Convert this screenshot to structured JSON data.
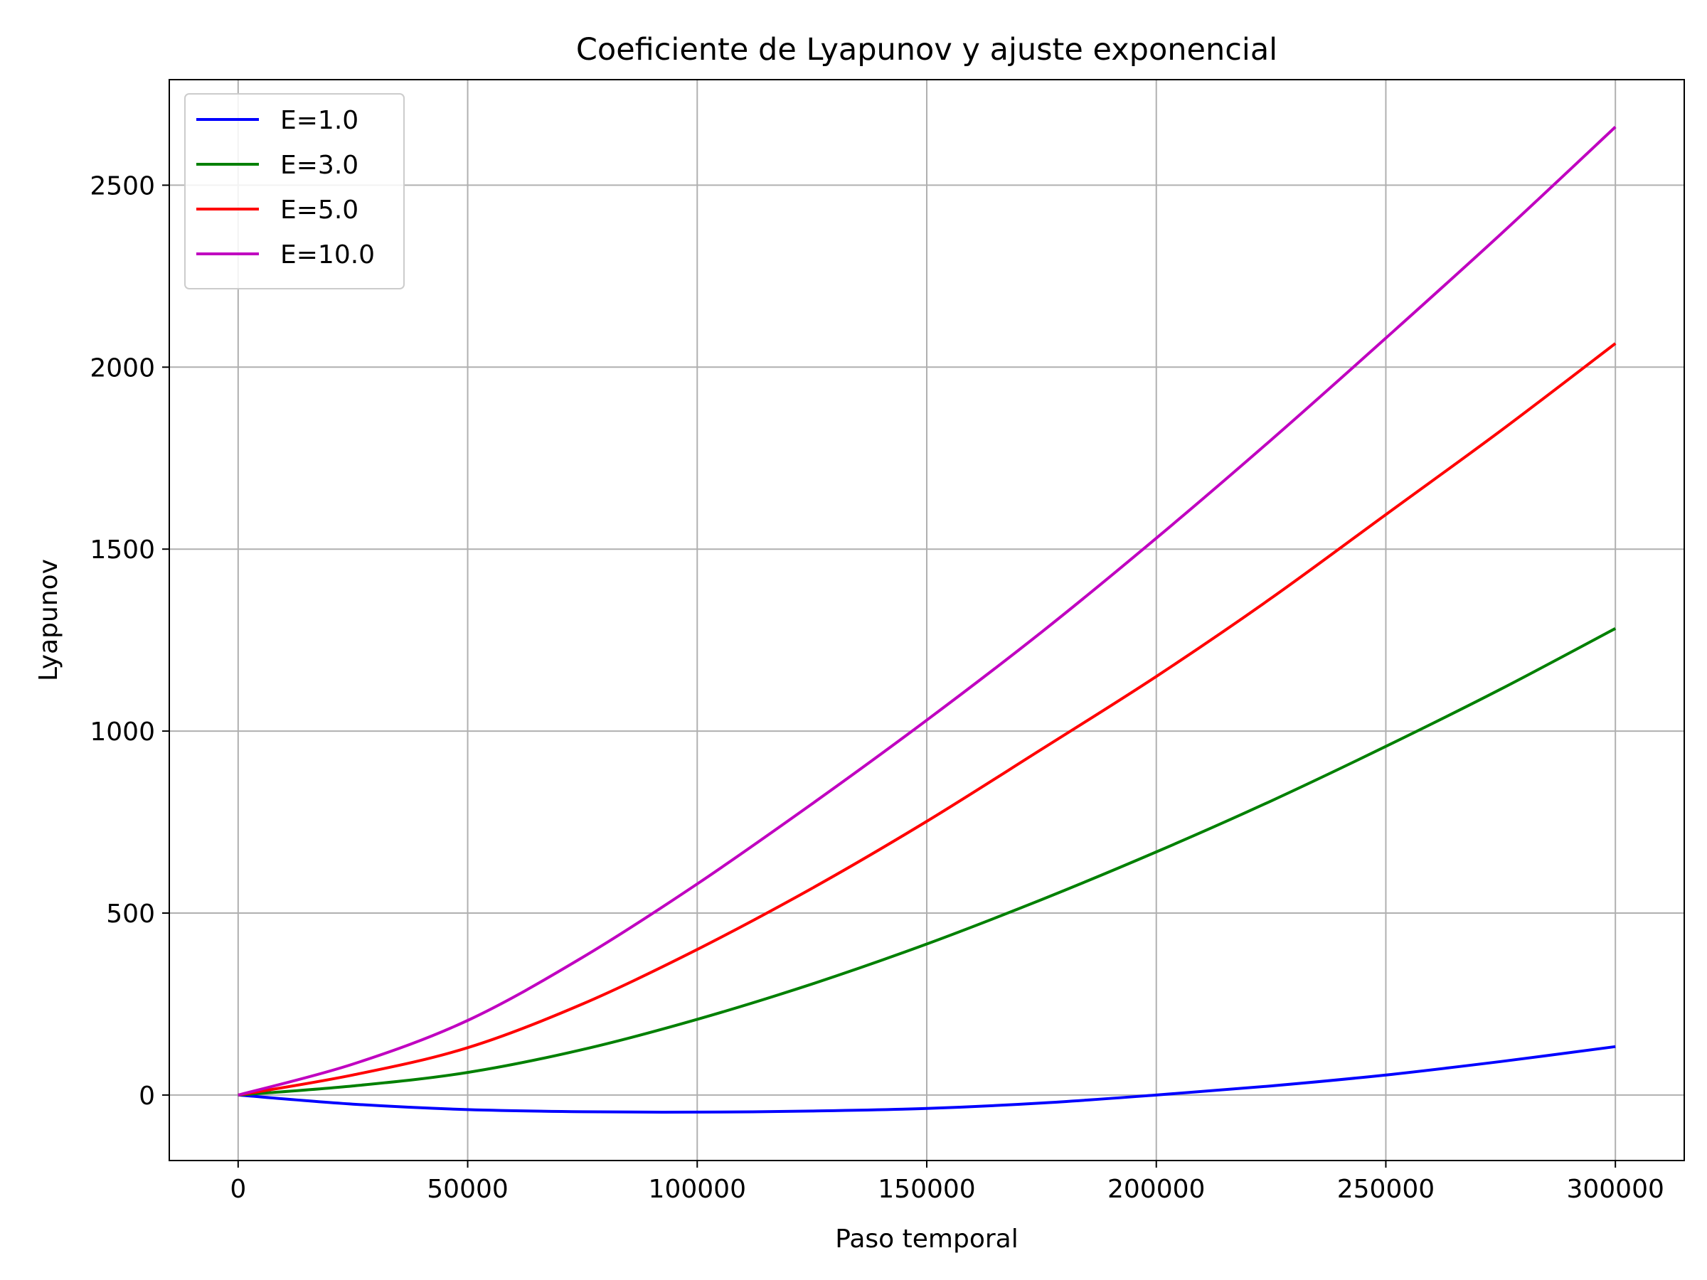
{
  "chart_data": {
    "type": "line",
    "title": "Coeficiente de Lyapunov y ajuste exponencial",
    "xlabel": "Paso temporal",
    "ylabel": "Lyapunov",
    "xlim": [
      -15000,
      315000
    ],
    "ylim": [
      -180,
      2790
    ],
    "xticks": [
      0,
      50000,
      100000,
      150000,
      200000,
      250000,
      300000
    ],
    "yticks": [
      0,
      500,
      1000,
      1500,
      2000,
      2500
    ],
    "grid": true,
    "legend_position": "upper-left",
    "x": [
      0,
      25000,
      50000,
      75000,
      100000,
      125000,
      150000,
      175000,
      200000,
      225000,
      250000,
      275000,
      300000
    ],
    "series": [
      {
        "name": "E=1.0",
        "color": "#0000ff",
        "values": [
          0,
          -25,
          -40,
          -46,
          -47,
          -44,
          -37,
          -22,
          0,
          25,
          55,
          92,
          133
        ]
      },
      {
        "name": "E=3.0",
        "color": "#008000",
        "values": [
          0,
          25,
          62,
          125,
          208,
          305,
          415,
          537,
          668,
          808,
          958,
          1115,
          1282
        ]
      },
      {
        "name": "E=5.0",
        "color": "#ff0000",
        "values": [
          0,
          55,
          130,
          250,
          400,
          568,
          752,
          950,
          1150,
          1365,
          1595,
          1825,
          2065
        ]
      },
      {
        "name": "E=10.0",
        "color": "#c000c0",
        "values": [
          0,
          85,
          205,
          378,
          580,
          800,
          1030,
          1272,
          1530,
          1800,
          2080,
          2365,
          2660
        ]
      }
    ]
  }
}
